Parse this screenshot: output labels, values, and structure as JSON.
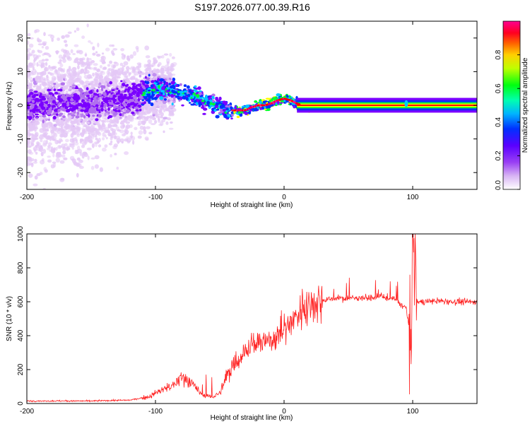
{
  "figure": {
    "title": "S197.2026.077.00.39.R16"
  },
  "chart_data": [
    {
      "type": "heatmap",
      "name": "spectrogram",
      "title": "S197.2026.077.00.39.R16",
      "xlabel": "Height of straight line (km)",
      "ylabel": "Frequency (Hz)",
      "xlim": [
        -200,
        150
      ],
      "ylim": [
        -25,
        25
      ],
      "xticks": [
        -200,
        -100,
        0,
        100
      ],
      "yticks": [
        -20,
        -10,
        0,
        10,
        20
      ],
      "colorbar": {
        "label": "Normalized spectral amplitude",
        "range": [
          0,
          1
        ],
        "ticks": [
          0.0,
          0.2,
          0.4,
          0.6,
          0.8
        ],
        "tick_labels": [
          "0.0",
          "0.2",
          "0.4",
          "0.6",
          "0.8"
        ],
        "colormap": [
          "#ffffff",
          "#e4c8f6",
          "#b070ee",
          "#7a00ff",
          "#0030ff",
          "#00c8ff",
          "#00ff30",
          "#ffff00",
          "#ff8000",
          "#ff0000",
          "#ff00a0"
        ]
      },
      "ridge": {
        "x": [
          -200,
          -150,
          -120,
          -105,
          -95,
          -85,
          -75,
          -65,
          -55,
          -48,
          -44,
          -40,
          -35,
          -30,
          -25,
          -20,
          -15,
          -10,
          -5,
          0,
          5,
          10,
          15,
          50,
          90,
          95,
          100,
          150
        ],
        "frequency": [
          0,
          1,
          2,
          4,
          5,
          4,
          3,
          2,
          0.5,
          -0.5,
          -2,
          -1.5,
          -1.5,
          -1.5,
          -0.5,
          0,
          0,
          0.5,
          1.5,
          2,
          1.5,
          0.5,
          0,
          0,
          0,
          1,
          0,
          0
        ]
      }
    },
    {
      "type": "line",
      "name": "snr",
      "xlabel": "Height of straight line (km)",
      "ylabel": "SNR (10 * v/v)",
      "xlim": [
        -200,
        150
      ],
      "ylim": [
        0,
        1000
      ],
      "xticks": [
        -200,
        -100,
        0,
        100
      ],
      "yticks": [
        0,
        200,
        400,
        600,
        800,
        1000
      ],
      "color": "#ff2020",
      "series": [
        {
          "name": "SNR",
          "x": [
            -200,
            -150,
            -120,
            -105,
            -95,
            -85,
            -80,
            -75,
            -70,
            -65,
            -60,
            -55,
            -50,
            -45,
            -40,
            -35,
            -30,
            -25,
            -20,
            -15,
            -10,
            -5,
            0,
            5,
            10,
            15,
            20,
            25,
            30,
            40,
            50,
            60,
            70,
            75,
            80,
            85,
            90,
            95,
            98,
            100,
            102,
            105,
            110,
            120,
            130,
            140,
            150
          ],
          "values": [
            15,
            15,
            20,
            40,
            80,
            110,
            150,
            150,
            100,
            60,
            45,
            40,
            60,
            150,
            230,
            260,
            320,
            340,
            350,
            360,
            380,
            400,
            430,
            480,
            520,
            560,
            590,
            600,
            610,
            620,
            620,
            625,
            620,
            640,
            610,
            620,
            590,
            560,
            400,
            620,
            600,
            600,
            600,
            605,
            600,
            600,
            600
          ]
        }
      ]
    }
  ]
}
